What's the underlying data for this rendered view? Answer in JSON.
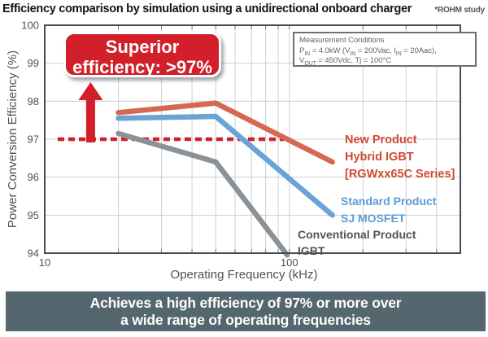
{
  "header": {
    "title": "Efficiency comparison by simulation using a unidirectional onboard charger",
    "credit": "*ROHM study"
  },
  "callout": {
    "line1": "Superior",
    "line2": "efficiency: >97%",
    "bg_color": "#d31f2a"
  },
  "annotation_arrow": {
    "at_kHz": 15.4,
    "from_pct": 97.0,
    "to_pct": 98.5,
    "color": "#d31f2a"
  },
  "measurement_box": {
    "title": "Measurement Conditions",
    "line2": {
      "t1": "P",
      "s1": "IN",
      "t2": " = 4.0kW (V",
      "s2": "IN",
      "t3": " = 200Vac, I",
      "s3": "IN",
      "t4": " = 20Aac),"
    },
    "line3": {
      "t1": "V",
      "s1": "OUT",
      "t2": " = 450Vdc, Tj = 100°C"
    }
  },
  "chart_data": {
    "type": "line",
    "title": "Efficiency comparison by simulation using a unidirectional onboard charger",
    "xlabel": "Operating Frequency (kHz)",
    "ylabel": "Power Conversion Efficiency (%)",
    "x_scale": "log",
    "xlim": [
      10,
      500
    ],
    "ylim": [
      94,
      100
    ],
    "grid": true,
    "x_tick_labels": [
      {
        "value": 10,
        "label": "10"
      },
      {
        "value": 100,
        "label": "100"
      }
    ],
    "x_gridlines": [
      20,
      30,
      40,
      50,
      60,
      70,
      80,
      90,
      100,
      200,
      300,
      400
    ],
    "y_ticks": [
      100,
      99,
      98,
      97,
      96,
      95,
      94
    ],
    "series": [
      {
        "name": "New Product Hybrid IGBT [RGWxx65C Series]",
        "color": "#d4694f",
        "points": [
          [
            20,
            97.7
          ],
          [
            50,
            97.95
          ],
          [
            150,
            96.4
          ]
        ]
      },
      {
        "name": "Standard Product SJ MOSFET",
        "color": "#6ba3d7",
        "points": [
          [
            20,
            97.55
          ],
          [
            50,
            97.6
          ],
          [
            150,
            95.0
          ]
        ]
      },
      {
        "name": "Conventional Product IGBT",
        "color": "#8b9297",
        "points": [
          [
            20,
            97.15
          ],
          [
            50,
            96.4
          ],
          [
            98,
            93.95
          ]
        ]
      }
    ],
    "reference_line": {
      "y": 97,
      "x_start": 11.3,
      "x_end": 95,
      "style": "dashed",
      "color": "#d31f2a"
    },
    "legend_position": "right-inside"
  },
  "legend": {
    "new_product": {
      "color": "#cf4a31",
      "lines": [
        "New Product",
        "Hybrid IGBT",
        "[RGWxx65C Series]"
      ]
    },
    "standard_product": {
      "color": "#5b9bd5",
      "lines": [
        "Standard Product",
        "SJ MOSFET"
      ]
    },
    "conventional_product": {
      "color": "#4d565c",
      "lines": [
        "Conventional Product",
        "IGBT"
      ]
    }
  },
  "banner": {
    "line1": "Achieves a high efficiency of 97% or more over",
    "line2": "a wide range of operating frequencies",
    "bg_color": "#54676e"
  }
}
